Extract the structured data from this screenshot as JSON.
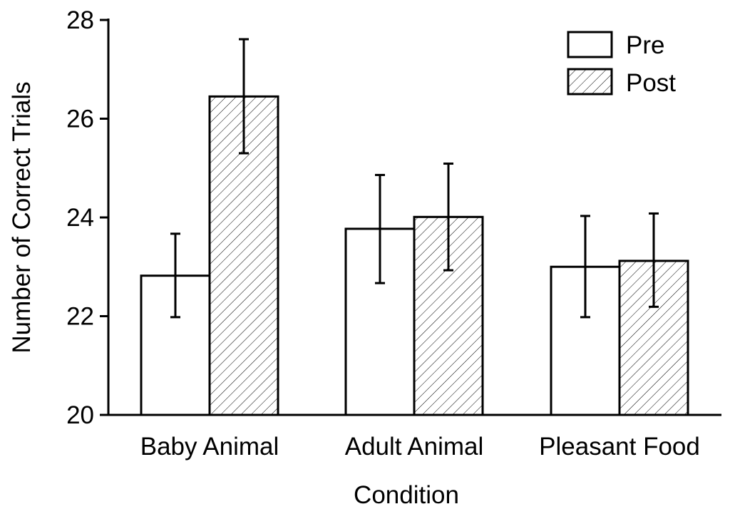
{
  "chart_data": {
    "type": "bar",
    "xlabel": "Condition",
    "ylabel": "Number of Correct Trials",
    "ylim": [
      20,
      28
    ],
    "yticks": [
      "20",
      "22",
      "24",
      "26",
      "28"
    ],
    "categories": [
      "Baby Animal",
      "Adult Animal",
      "Pleasant Food"
    ],
    "series": [
      {
        "name": "Pre",
        "pattern": "none",
        "values": [
          22.82,
          23.77,
          23.0
        ],
        "error_low": [
          21.98,
          22.67,
          21.98
        ],
        "error_high": [
          23.67,
          24.86,
          24.03
        ]
      },
      {
        "name": "Post",
        "pattern": "diagonal-hatch",
        "values": [
          26.45,
          24.01,
          23.12
        ],
        "error_low": [
          25.3,
          22.93,
          22.19
        ],
        "error_high": [
          27.61,
          25.09,
          24.08
        ]
      }
    ],
    "legend": "top-right",
    "grid": false,
    "colors": {
      "fill": "#ffffff",
      "stroke": "#000000"
    }
  }
}
